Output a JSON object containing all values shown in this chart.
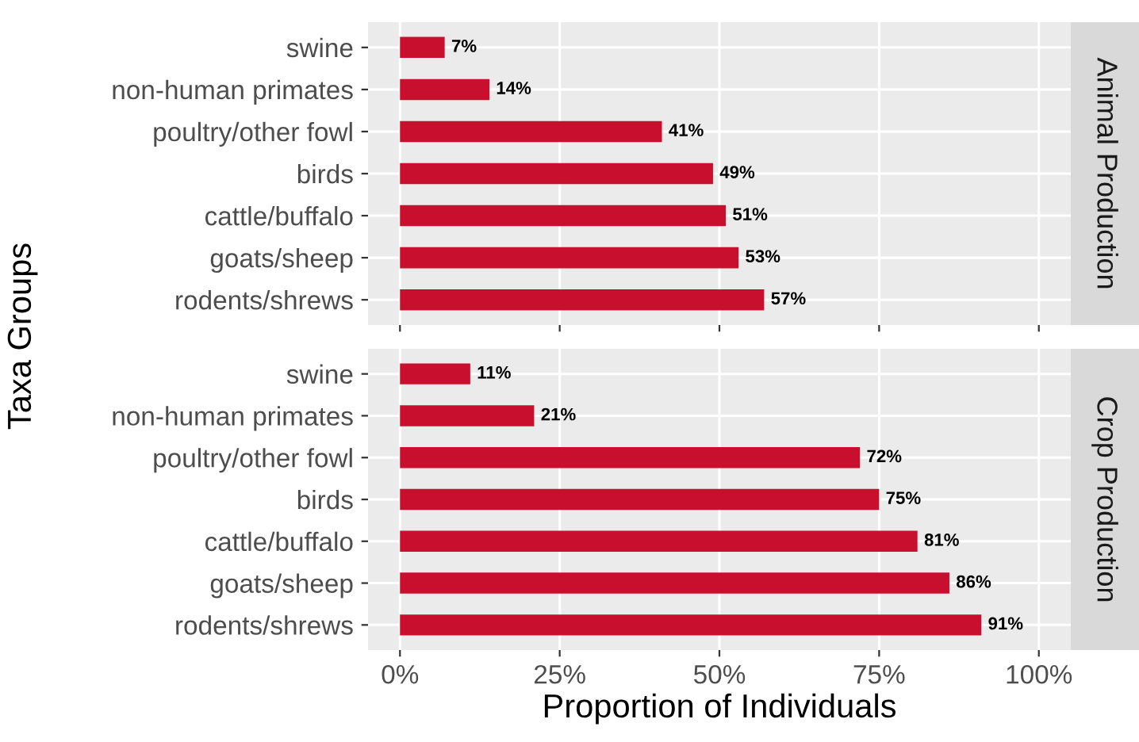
{
  "chart_data": [
    {
      "type": "bar",
      "orientation": "horizontal",
      "annotations": [
        "Animal Production"
      ],
      "ylabel": "Taxa Groups",
      "categories": [
        "swine",
        "non-human primates",
        "poultry/other fowl",
        "birds",
        "cattle/buffalo",
        "goats/sheep",
        "rodents/shrews"
      ],
      "values": [
        7,
        14,
        41,
        49,
        51,
        53,
        57
      ],
      "value_labels": [
        "7%",
        "14%",
        "41%",
        "49%",
        "51%",
        "53%",
        "57%"
      ],
      "color": "#c8102e",
      "xlim": [
        -5,
        105
      ],
      "xticks": [
        {
          "value": 0,
          "label": null
        },
        {
          "value": 25,
          "label": null
        },
        {
          "value": 50,
          "label": null
        },
        {
          "value": 75,
          "label": null
        },
        {
          "value": 100,
          "label": null
        }
      ],
      "tick_labels": "y",
      "grid": true,
      "legend": false
    },
    {
      "type": "bar",
      "orientation": "horizontal",
      "annotations": [
        "Crop Production"
      ],
      "xlabel": "Proportion of Individuals",
      "categories": [
        "swine",
        "non-human primates",
        "poultry/other fowl",
        "birds",
        "cattle/buffalo",
        "goats/sheep",
        "rodents/shrews"
      ],
      "values": [
        11,
        21,
        72,
        75,
        81,
        86,
        91
      ],
      "value_labels": [
        "11%",
        "21%",
        "72%",
        "75%",
        "81%",
        "86%",
        "91%"
      ],
      "color": "#c8102e",
      "xlim": [
        -5,
        105
      ],
      "xticks": [
        {
          "value": 0,
          "label": "0%"
        },
        {
          "value": 25,
          "label": "25%"
        },
        {
          "value": 50,
          "label": "50%"
        },
        {
          "value": 75,
          "label": "75%"
        },
        {
          "value": 100,
          "label": "100%"
        }
      ],
      "grid": true,
      "legend": false
    }
  ]
}
